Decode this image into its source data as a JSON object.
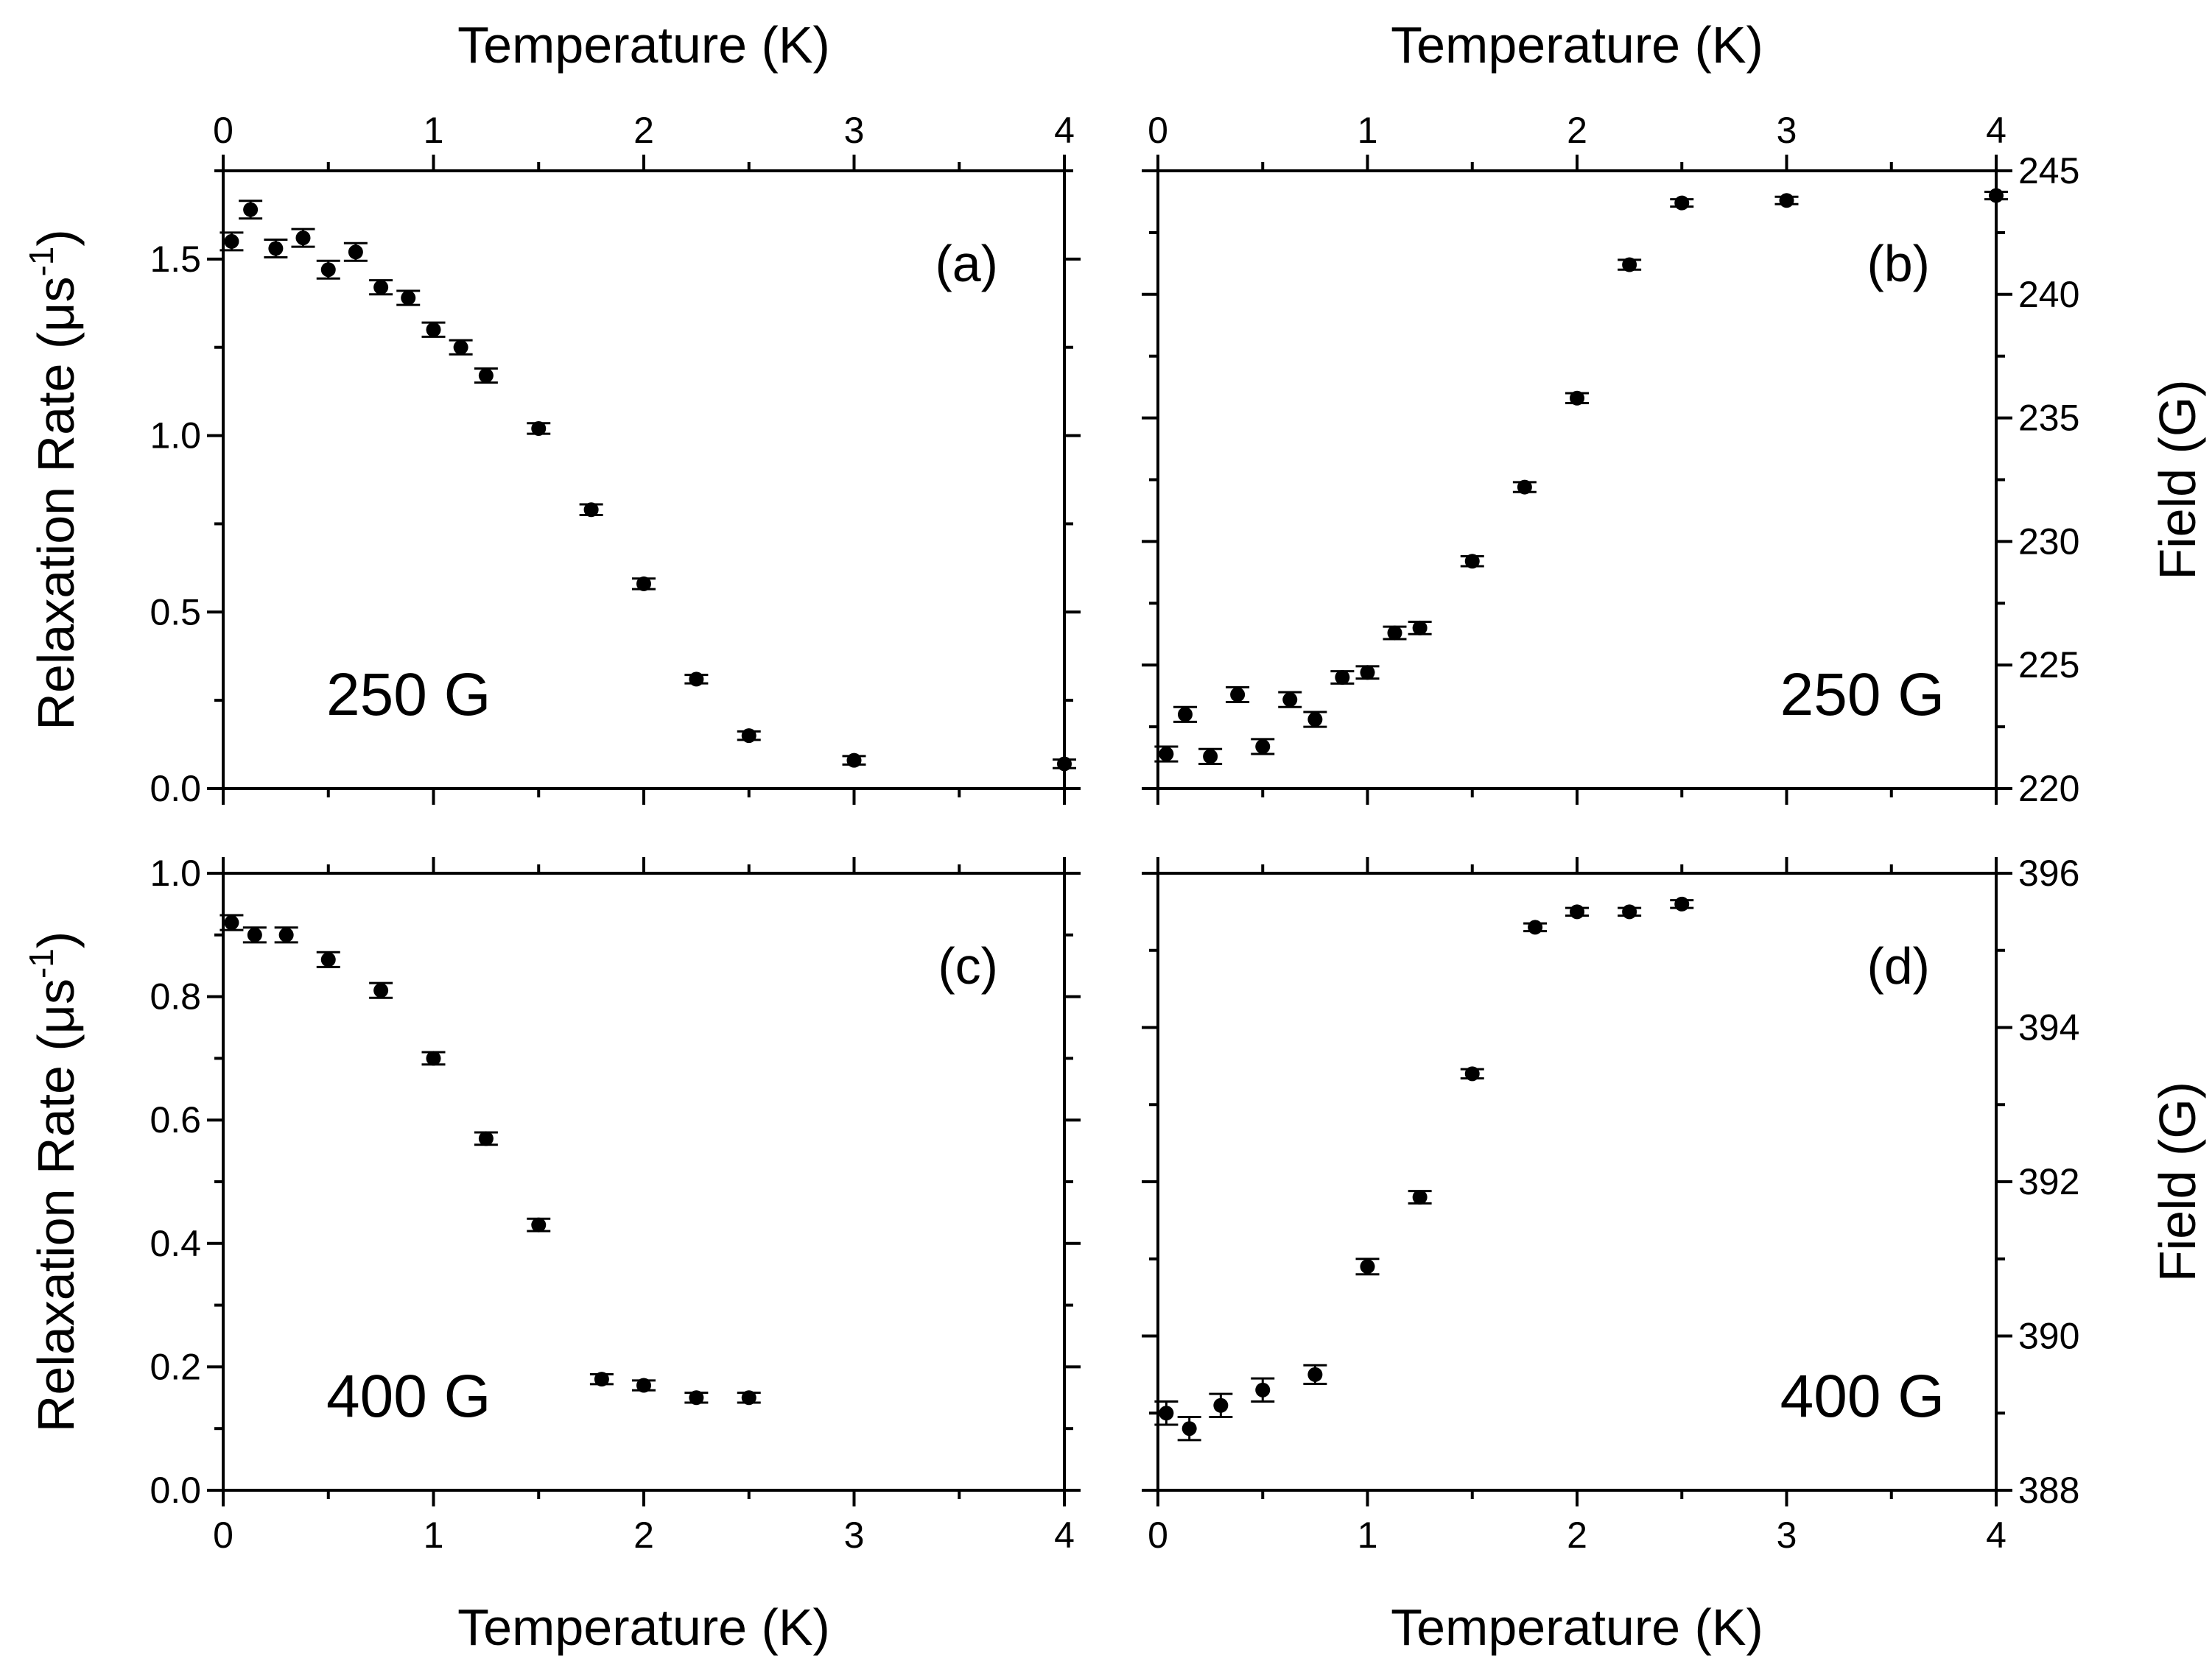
{
  "chart_data": [
    {
      "id": "a",
      "type": "scatter",
      "panel_label": "(a)",
      "field_label": "250 G",
      "xlabel_top": "Temperature (K)",
      "xlabel_bottom": "",
      "ylabel": "Relaxation Rate (μs-1)",
      "y2label": "",
      "xlim": [
        0,
        4
      ],
      "ylim": [
        0,
        1.75
      ],
      "xticks": [
        0,
        1,
        2,
        3,
        4
      ],
      "yticks": [
        "0.0",
        "0.5",
        "1.0",
        "1.5"
      ],
      "yticks_values": [
        0,
        0.5,
        1.0,
        1.5
      ],
      "x": [
        0.04,
        0.13,
        0.25,
        0.38,
        0.5,
        0.63,
        0.75,
        0.88,
        1.0,
        1.13,
        1.25,
        1.5,
        1.75,
        2.0,
        2.25,
        2.5,
        3.0,
        4.0
      ],
      "y": [
        1.55,
        1.64,
        1.53,
        1.56,
        1.47,
        1.52,
        1.42,
        1.39,
        1.3,
        1.25,
        1.17,
        1.02,
        0.79,
        0.58,
        0.31,
        0.15,
        0.08,
        0.07
      ],
      "err": [
        0.025,
        0.025,
        0.025,
        0.025,
        0.025,
        0.025,
        0.02,
        0.02,
        0.02,
        0.02,
        0.02,
        0.015,
        0.015,
        0.015,
        0.012,
        0.012,
        0.012,
        0.012
      ]
    },
    {
      "id": "b",
      "type": "scatter",
      "panel_label": "(b)",
      "field_label": "250 G",
      "xlabel_top": "Temperature (K)",
      "xlabel_bottom": "",
      "ylabel": "",
      "y2label": "Field (G)",
      "xlim": [
        0,
        4
      ],
      "ylim": [
        220,
        245
      ],
      "xticks": [
        0,
        1,
        2,
        3,
        4
      ],
      "yticks": [
        "220",
        "225",
        "230",
        "235",
        "240",
        "245"
      ],
      "yticks_values": [
        220,
        225,
        230,
        235,
        240,
        245
      ],
      "x": [
        0.04,
        0.13,
        0.25,
        0.38,
        0.5,
        0.63,
        0.75,
        0.88,
        1.0,
        1.13,
        1.25,
        1.5,
        1.75,
        2.0,
        2.25,
        2.5,
        3.0,
        4.0
      ],
      "y": [
        221.4,
        223.0,
        221.3,
        223.8,
        221.7,
        223.6,
        222.8,
        224.5,
        224.7,
        226.3,
        226.5,
        229.2,
        232.2,
        235.8,
        241.2,
        243.7,
        243.8,
        244.0
      ],
      "err": [
        0.3,
        0.3,
        0.3,
        0.3,
        0.3,
        0.3,
        0.3,
        0.25,
        0.25,
        0.25,
        0.25,
        0.2,
        0.2,
        0.2,
        0.2,
        0.15,
        0.15,
        0.15
      ]
    },
    {
      "id": "c",
      "type": "scatter",
      "panel_label": "(c)",
      "field_label": "400 G",
      "xlabel_top": "",
      "xlabel_bottom": "Temperature (K)",
      "ylabel": "Relaxation Rate (μs-1)",
      "y2label": "",
      "xlim": [
        0,
        4
      ],
      "ylim": [
        0,
        1.0
      ],
      "xticks": [
        0,
        1,
        2,
        3,
        4
      ],
      "yticks": [
        "0.0",
        "0.2",
        "0.4",
        "0.6",
        "0.8",
        "1.0"
      ],
      "yticks_values": [
        0,
        0.2,
        0.4,
        0.6,
        0.8,
        1.0
      ],
      "x": [
        0.04,
        0.15,
        0.3,
        0.5,
        0.75,
        1.0,
        1.25,
        1.5,
        1.8,
        2.0,
        2.25,
        2.5
      ],
      "y": [
        0.92,
        0.9,
        0.9,
        0.86,
        0.81,
        0.7,
        0.57,
        0.43,
        0.18,
        0.17,
        0.15,
        0.15
      ],
      "err": [
        0.012,
        0.012,
        0.012,
        0.012,
        0.012,
        0.01,
        0.01,
        0.01,
        0.008,
        0.008,
        0.008,
        0.008
      ]
    },
    {
      "id": "d",
      "type": "scatter",
      "panel_label": "(d)",
      "field_label": "400 G",
      "xlabel_top": "",
      "xlabel_bottom": "Temperature (K)",
      "ylabel": "",
      "y2label": "Field (G)",
      "xlim": [
        0,
        4
      ],
      "ylim": [
        388,
        396
      ],
      "xticks": [
        0,
        1,
        2,
        3,
        4
      ],
      "yticks": [
        "388",
        "390",
        "392",
        "394",
        "396"
      ],
      "yticks_values": [
        388,
        390,
        392,
        394,
        396
      ],
      "x": [
        0.04,
        0.15,
        0.3,
        0.5,
        0.75,
        1.0,
        1.25,
        1.5,
        1.8,
        2.0,
        2.25,
        2.5
      ],
      "y": [
        389.0,
        388.8,
        389.1,
        389.3,
        389.5,
        390.9,
        391.8,
        393.4,
        395.3,
        395.5,
        395.5,
        395.6
      ],
      "err": [
        0.15,
        0.15,
        0.15,
        0.15,
        0.12,
        0.1,
        0.08,
        0.06,
        0.05,
        0.05,
        0.05,
        0.05
      ]
    }
  ]
}
